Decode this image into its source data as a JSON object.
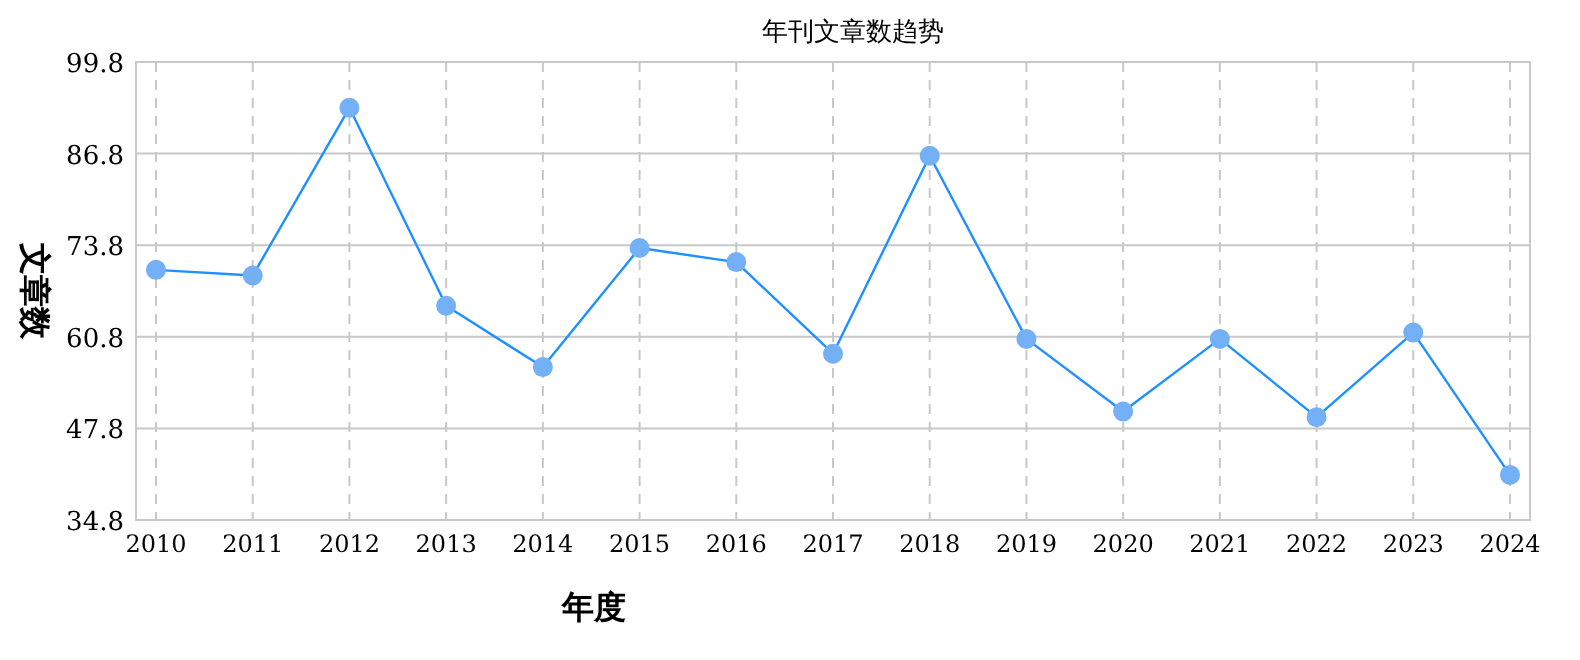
{
  "chart_data": {
    "type": "line",
    "title": "年刊文章数趋势",
    "xlabel": "年度",
    "ylabel": "文章数",
    "categories": [
      "2010",
      "2011",
      "2012",
      "2013",
      "2014",
      "2015",
      "2016",
      "2017",
      "2018",
      "2019",
      "2020",
      "2021",
      "2022",
      "2023",
      "2024"
    ],
    "series": [
      {
        "color": "#1e90ff",
        "values": [
          70.3,
          69.5,
          93.3,
          65.2,
          56.5,
          73.4,
          71.4,
          58.4,
          86.5,
          60.5,
          50.2,
          60.5,
          49.4,
          61.4,
          41.2
        ]
      }
    ],
    "ylim": [
      34.8,
      99.8
    ],
    "yticks": [
      34.8,
      47.8,
      60.8,
      73.8,
      86.8,
      99.8
    ],
    "grid": true,
    "marker": "circle",
    "line_style": "solid"
  }
}
